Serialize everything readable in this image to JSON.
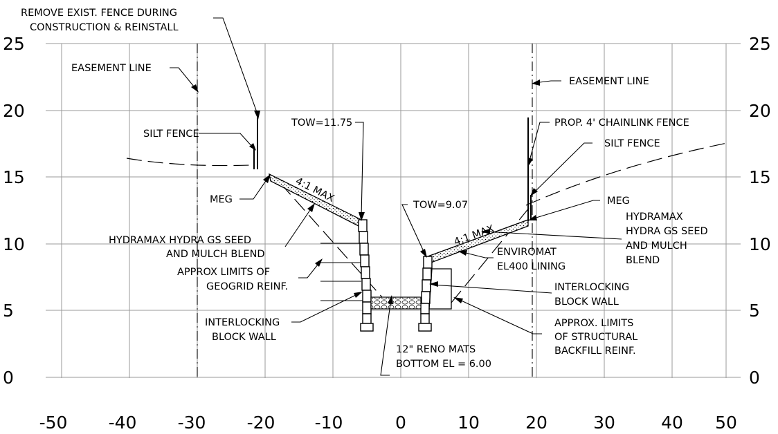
{
  "x_ticks": [
    "-50",
    "-40",
    "-30",
    "-20",
    "-10",
    "0",
    "10",
    "20",
    "30",
    "40",
    "50"
  ],
  "y_ticks": [
    "0",
    "5",
    "10",
    "15",
    "20",
    "25"
  ],
  "x_range": [
    -50,
    50
  ],
  "y_range": [
    0,
    25
  ],
  "labels": {
    "remove_fence_1": "REMOVE EXIST. FENCE DURING",
    "remove_fence_2": "CONSTRUCTION & REINSTALL",
    "easement_left": "EASEMENT LINE",
    "easement_right": "EASEMENT LINE",
    "silt_fence_left": "SILT FENCE",
    "silt_fence_right": "SILT FENCE",
    "tow_left": "TOW=11.75",
    "tow_right": "TOW=9.07",
    "chainlink": "PROP. 4' CHAINLINK FENCE",
    "meg_left": "MEG",
    "meg_right": "MEG",
    "slope_left": "4:1 MAX",
    "slope_right": "4:1 MAX",
    "hydramax_left_1": "HYDRAMAX HYDRA GS SEED",
    "hydramax_left_2": "AND MULCH BLEND",
    "hydramax_right_1": "HYDRAMAX",
    "hydramax_right_2": "HYDRA GS SEED",
    "hydramax_right_3": "AND MULCH",
    "hydramax_right_4": "BLEND",
    "geogrid_1": "APPROX LIMITS OF",
    "geogrid_2": "GEOGRID REINF.",
    "enviromat_1": "ENVIROMAT",
    "enviromat_2": "EL400 LINING",
    "block_right_1": "INTERLOCKING",
    "block_right_2": "BLOCK WALL",
    "block_left_1": "INTERLOCKING",
    "block_left_2": "BLOCK WALL",
    "structural_1": "APPROX. LIMITS",
    "structural_2": "OF STRUCTURAL",
    "structural_3": "BACKFILL REINF.",
    "reno_1": "12\" RENO MATS",
    "reno_2": "BOTTOM EL = 6.00"
  }
}
